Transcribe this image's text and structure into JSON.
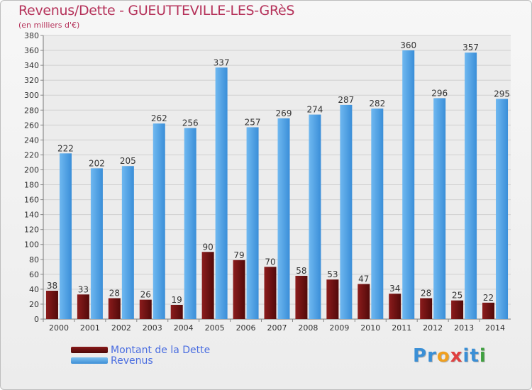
{
  "title": "Revenus/Dette - GUEUTTEVILLE-LES-GRèS",
  "subtitle": "(en milliers d'€)",
  "legend": {
    "dette": "Montant de la Dette",
    "revenus": "Revenus"
  },
  "logo": {
    "text": "Proxiti",
    "letters": [
      "P",
      "r",
      "o",
      "x",
      "i",
      "t",
      "i"
    ],
    "colors": [
      "#3a8fd6",
      "#3a8fd6",
      "#f0a020",
      "#e04040",
      "#3a8fd6",
      "#3a8fd6",
      "#40a040"
    ]
  },
  "chart_data": {
    "type": "bar",
    "categories": [
      "2000",
      "2001",
      "2002",
      "2003",
      "2004",
      "2005",
      "2006",
      "2007",
      "2008",
      "2009",
      "2010",
      "2011",
      "2012",
      "2013",
      "2014"
    ],
    "series": [
      {
        "name": "Montant de la Dette",
        "values": [
          38,
          33,
          28,
          26,
          19,
          90,
          79,
          70,
          58,
          53,
          47,
          34,
          28,
          25,
          22
        ],
        "color": "#6e1010"
      },
      {
        "name": "Revenus",
        "values": [
          222,
          202,
          205,
          262,
          256,
          337,
          257,
          269,
          274,
          287,
          282,
          360,
          296,
          357,
          295
        ],
        "color": "#4a9fe6"
      }
    ],
    "ylim": [
      0,
      380
    ],
    "ytick_step": 20,
    "grid": true
  }
}
